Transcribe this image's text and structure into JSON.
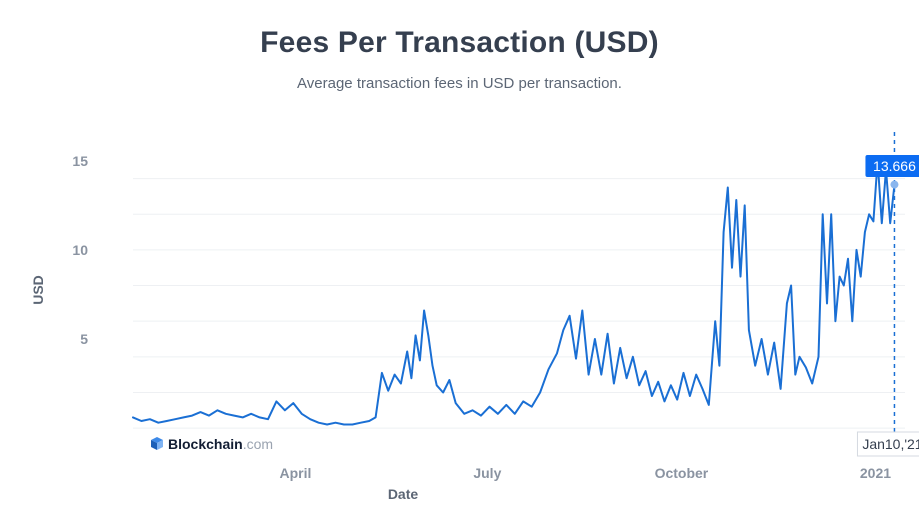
{
  "chart_data": {
    "type": "line",
    "title": "Fees Per Transaction (USD)",
    "subtitle": "Average transaction fees in USD per transaction.",
    "xlabel": "Date",
    "ylabel": "USD",
    "ylim": [
      -0.5,
      16
    ],
    "y_ticks": [
      5,
      10,
      15
    ],
    "x_ticks": [
      {
        "label": "April",
        "date": "2020-04-01"
      },
      {
        "label": "July",
        "date": "2020-07-01"
      },
      {
        "label": "October",
        "date": "2020-10-01"
      },
      {
        "label": "2021",
        "date": "2021-01-01"
      }
    ],
    "xlim": [
      "2020-01-15",
      "2021-01-15"
    ],
    "grid": true,
    "line_color": "#1a6fd4",
    "series": [
      {
        "points": [
          [
            "2020-01-15",
            0.6
          ],
          [
            "2020-01-19",
            0.4
          ],
          [
            "2020-01-23",
            0.5
          ],
          [
            "2020-01-27",
            0.3
          ],
          [
            "2020-01-31",
            0.4
          ],
          [
            "2020-02-04",
            0.5
          ],
          [
            "2020-02-08",
            0.6
          ],
          [
            "2020-02-12",
            0.7
          ],
          [
            "2020-02-16",
            0.9
          ],
          [
            "2020-02-20",
            0.7
          ],
          [
            "2020-02-24",
            1.0
          ],
          [
            "2020-02-28",
            0.8
          ],
          [
            "2020-03-03",
            0.7
          ],
          [
            "2020-03-07",
            0.6
          ],
          [
            "2020-03-11",
            0.8
          ],
          [
            "2020-03-15",
            0.6
          ],
          [
            "2020-03-19",
            0.5
          ],
          [
            "2020-03-23",
            1.5
          ],
          [
            "2020-03-27",
            1.0
          ],
          [
            "2020-03-31",
            1.4
          ],
          [
            "2020-04-04",
            0.8
          ],
          [
            "2020-04-08",
            0.5
          ],
          [
            "2020-04-12",
            0.3
          ],
          [
            "2020-04-16",
            0.2
          ],
          [
            "2020-04-20",
            0.3
          ],
          [
            "2020-04-24",
            0.2
          ],
          [
            "2020-04-28",
            0.2
          ],
          [
            "2020-05-02",
            0.3
          ],
          [
            "2020-05-06",
            0.4
          ],
          [
            "2020-05-09",
            0.6
          ],
          [
            "2020-05-12",
            3.1
          ],
          [
            "2020-05-15",
            2.1
          ],
          [
            "2020-05-18",
            3.0
          ],
          [
            "2020-05-21",
            2.5
          ],
          [
            "2020-05-24",
            4.3
          ],
          [
            "2020-05-26",
            2.8
          ],
          [
            "2020-05-28",
            5.2
          ],
          [
            "2020-05-30",
            3.8
          ],
          [
            "2020-06-01",
            6.6
          ],
          [
            "2020-06-03",
            5.2
          ],
          [
            "2020-06-05",
            3.5
          ],
          [
            "2020-06-07",
            2.4
          ],
          [
            "2020-06-10",
            2.0
          ],
          [
            "2020-06-13",
            2.7
          ],
          [
            "2020-06-16",
            1.4
          ],
          [
            "2020-06-20",
            0.8
          ],
          [
            "2020-06-24",
            1.0
          ],
          [
            "2020-06-28",
            0.7
          ],
          [
            "2020-07-02",
            1.2
          ],
          [
            "2020-07-06",
            0.8
          ],
          [
            "2020-07-10",
            1.3
          ],
          [
            "2020-07-14",
            0.8
          ],
          [
            "2020-07-18",
            1.5
          ],
          [
            "2020-07-22",
            1.2
          ],
          [
            "2020-07-26",
            2.0
          ],
          [
            "2020-07-30",
            3.3
          ],
          [
            "2020-08-03",
            4.2
          ],
          [
            "2020-08-06",
            5.5
          ],
          [
            "2020-08-09",
            6.3
          ],
          [
            "2020-08-12",
            3.9
          ],
          [
            "2020-08-15",
            6.6
          ],
          [
            "2020-08-18",
            3.0
          ],
          [
            "2020-08-21",
            5.0
          ],
          [
            "2020-08-24",
            3.0
          ],
          [
            "2020-08-27",
            5.3
          ],
          [
            "2020-08-30",
            2.5
          ],
          [
            "2020-09-02",
            4.5
          ],
          [
            "2020-09-05",
            2.8
          ],
          [
            "2020-09-08",
            4.0
          ],
          [
            "2020-09-11",
            2.4
          ],
          [
            "2020-09-14",
            3.2
          ],
          [
            "2020-09-17",
            1.8
          ],
          [
            "2020-09-20",
            2.6
          ],
          [
            "2020-09-23",
            1.5
          ],
          [
            "2020-09-26",
            2.4
          ],
          [
            "2020-09-29",
            1.6
          ],
          [
            "2020-10-02",
            3.1
          ],
          [
            "2020-10-05",
            1.8
          ],
          [
            "2020-10-08",
            3.0
          ],
          [
            "2020-10-11",
            2.2
          ],
          [
            "2020-10-14",
            1.3
          ],
          [
            "2020-10-17",
            6.0
          ],
          [
            "2020-10-19",
            3.5
          ],
          [
            "2020-10-21",
            11.0
          ],
          [
            "2020-10-23",
            13.5
          ],
          [
            "2020-10-25",
            9.0
          ],
          [
            "2020-10-27",
            12.8
          ],
          [
            "2020-10-29",
            8.5
          ],
          [
            "2020-10-31",
            12.5
          ],
          [
            "2020-11-02",
            5.5
          ],
          [
            "2020-11-05",
            3.5
          ],
          [
            "2020-11-08",
            5.0
          ],
          [
            "2020-11-11",
            3.0
          ],
          [
            "2020-11-14",
            4.8
          ],
          [
            "2020-11-17",
            2.2
          ],
          [
            "2020-11-20",
            7.0
          ],
          [
            "2020-11-22",
            8.0
          ],
          [
            "2020-11-24",
            3.0
          ],
          [
            "2020-11-26",
            4.0
          ],
          [
            "2020-11-29",
            3.4
          ],
          [
            "2020-12-02",
            2.5
          ],
          [
            "2020-12-05",
            4.0
          ],
          [
            "2020-12-07",
            12.0
          ],
          [
            "2020-12-09",
            7.0
          ],
          [
            "2020-12-11",
            12.0
          ],
          [
            "2020-12-13",
            6.0
          ],
          [
            "2020-12-15",
            8.5
          ],
          [
            "2020-12-17",
            8.0
          ],
          [
            "2020-12-19",
            9.5
          ],
          [
            "2020-12-21",
            6.0
          ],
          [
            "2020-12-23",
            10.0
          ],
          [
            "2020-12-25",
            8.5
          ],
          [
            "2020-12-27",
            11.0
          ],
          [
            "2020-12-29",
            12.0
          ],
          [
            "2020-12-31",
            11.6
          ],
          [
            "2021-01-02",
            15.0
          ],
          [
            "2021-01-04",
            11.5
          ],
          [
            "2021-01-06",
            14.5
          ],
          [
            "2021-01-08",
            11.5
          ],
          [
            "2021-01-10",
            13.666
          ]
        ]
      }
    ],
    "tooltip": {
      "value": "13.666",
      "date_label": "Jan10,'21",
      "date": "2021-01-10"
    },
    "watermark": {
      "brand": "Blockchain",
      "suffix": ".com"
    }
  }
}
